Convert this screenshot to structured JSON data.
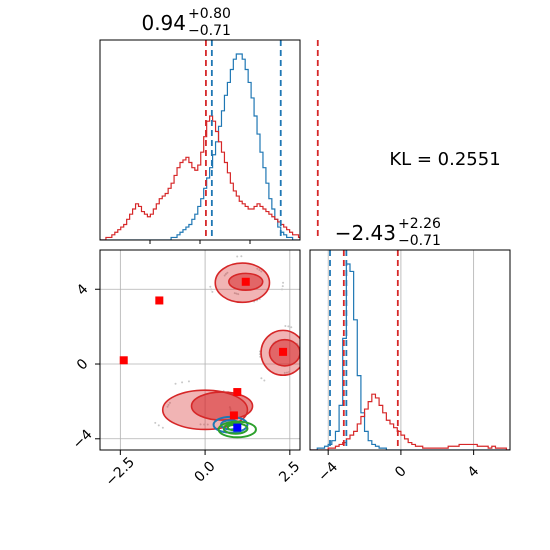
{
  "chart_data": [
    {
      "type": "histogram",
      "panel": "x-marginal",
      "title": {
        "value": "0.94",
        "plus": "+0.80",
        "minus": "−0.71"
      },
      "xlim": [
        -1.2,
        1.5
      ],
      "ticks": [],
      "series": [
        {
          "color": "#1f77b4",
          "bin_start": -1.2,
          "bin_width": 0.04,
          "values": [
            0,
            0,
            0,
            0,
            0,
            0,
            0,
            0,
            0,
            0,
            0,
            0,
            0,
            0,
            0,
            0,
            0,
            0,
            0,
            0,
            0,
            0,
            0,
            0,
            1,
            1,
            2,
            3,
            4,
            5,
            6,
            8,
            10,
            13,
            16,
            20,
            24,
            28,
            33,
            38,
            44,
            50,
            56,
            61,
            66,
            70,
            72,
            72,
            70,
            66,
            61,
            55,
            48,
            41,
            34,
            28,
            22,
            16,
            12,
            8,
            5,
            3,
            2,
            1,
            1,
            0,
            0,
            0,
            0,
            0
          ]
        },
        {
          "color": "#d62728",
          "bin_start": -1.2,
          "bin_width": 0.04,
          "values": [
            0,
            0,
            1,
            1,
            2,
            3,
            4,
            5,
            6,
            8,
            10,
            12,
            14,
            13,
            11,
            10,
            9,
            10,
            12,
            14,
            16,
            17,
            18,
            20,
            22,
            25,
            28,
            30,
            31,
            32,
            30,
            28,
            27,
            29,
            34,
            40,
            46,
            48,
            46,
            42,
            38,
            34,
            30,
            26,
            22,
            19,
            17,
            15,
            14,
            13,
            12,
            12,
            13,
            14,
            13,
            12,
            11,
            10,
            9,
            8,
            7,
            6,
            5,
            4,
            3,
            2,
            2,
            1,
            1,
            0
          ]
        }
      ],
      "quantile_lines": [
        {
          "color": "#d62728",
          "x": [
            0.23,
            1.74
          ]
        },
        {
          "color": "#1f77b4",
          "x": [
            0.31,
            1.24
          ]
        }
      ]
    },
    {
      "type": "histogram",
      "panel": "y-marginal",
      "title": {
        "value": "−2.43",
        "plus": "+2.26",
        "minus": "−0.71"
      },
      "xlim": [
        -5.0,
        6.0
      ],
      "ticks": [
        {
          "v": -4,
          "label": "−4"
        },
        {
          "v": 0,
          "label": "0"
        },
        {
          "v": 4,
          "label": "4"
        }
      ],
      "series": [
        {
          "color": "#1f77b4",
          "bin_start": -5.0,
          "bin_width": 0.2,
          "values": [
            0,
            0,
            1,
            1,
            2,
            3,
            5,
            10,
            24,
            60,
            100,
            96,
            70,
            40,
            20,
            10,
            5,
            3,
            2,
            1,
            1,
            0,
            0,
            0,
            0,
            0,
            0,
            0,
            0,
            0,
            0,
            0,
            0,
            0,
            0,
            0,
            0,
            0,
            0,
            0,
            0,
            0,
            0,
            0,
            0,
            0,
            0,
            0,
            0,
            0,
            0,
            0,
            0,
            0,
            0
          ]
        },
        {
          "color": "#d62728",
          "bin_start": -5.0,
          "bin_width": 0.2,
          "values": [
            0,
            0,
            0,
            0,
            0,
            1,
            1,
            2,
            3,
            4,
            6,
            8,
            10,
            14,
            18,
            22,
            26,
            30,
            28,
            24,
            20,
            16,
            14,
            12,
            10,
            8,
            6,
            4,
            3,
            2,
            2,
            1,
            1,
            1,
            1,
            1,
            1,
            1,
            2,
            2,
            2,
            3,
            3,
            3,
            3,
            3,
            2,
            2,
            2,
            1,
            2,
            1,
            1,
            1,
            0
          ]
        }
      ],
      "quantile_lines": [
        {
          "color": "#d62728",
          "x": [
            -3.14,
            -0.17
          ]
        },
        {
          "color": "#1f77b4",
          "x": [
            -3.9,
            -3.0
          ]
        }
      ]
    },
    {
      "type": "scatter",
      "panel": "joint",
      "xlim": [
        -3.1,
        2.8
      ],
      "ylim": [
        -4.6,
        6.1
      ],
      "x_ticks": [
        {
          "v": -2.5,
          "label": "−2.5"
        },
        {
          "v": 0.0,
          "label": "0.0"
        },
        {
          "v": 2.5,
          "label": "2.5"
        }
      ],
      "y_ticks": [
        {
          "v": 4,
          "label": "4"
        },
        {
          "v": 0,
          "label": "0"
        },
        {
          "v": -4,
          "label": "−4"
        }
      ],
      "red_contours": [
        {
          "cx": 0.0,
          "cy": -2.45,
          "rx": 1.25,
          "ry": 1.05,
          "level": 2,
          "light": true
        },
        {
          "cx": 0.5,
          "cy": -2.25,
          "rx": 0.9,
          "ry": 0.75,
          "level": 1,
          "light": false
        },
        {
          "cx": 1.1,
          "cy": 4.35,
          "rx": 0.8,
          "ry": 1.05,
          "level": 2,
          "light": true
        },
        {
          "cx": 1.2,
          "cy": 4.4,
          "rx": 0.5,
          "ry": 0.45,
          "level": 1,
          "light": false
        },
        {
          "cx": 2.3,
          "cy": 0.6,
          "rx": 0.65,
          "ry": 1.2,
          "level": 2,
          "light": true
        },
        {
          "cx": 2.35,
          "cy": 0.6,
          "rx": 0.45,
          "ry": 0.7,
          "level": 1,
          "light": false
        }
      ],
      "green_contours": [
        {
          "cx": 0.95,
          "cy": -3.5,
          "rx": 0.55,
          "ry": 0.42
        },
        {
          "cx": 0.9,
          "cy": -3.45,
          "rx": 0.35,
          "ry": 0.28
        },
        {
          "cx": 0.85,
          "cy": -3.4,
          "rx": 0.18,
          "ry": 0.14
        }
      ],
      "blue_contours": [
        {
          "cx": 0.75,
          "cy": -3.25,
          "rx": 0.5,
          "ry": 0.42
        },
        {
          "cx": 0.75,
          "cy": -3.25,
          "rx": 0.28,
          "ry": 0.25
        }
      ],
      "red_points": [
        {
          "x": -2.4,
          "y": 0.2
        },
        {
          "x": -1.35,
          "y": 3.4
        },
        {
          "x": 1.2,
          "y": 4.4
        },
        {
          "x": 2.3,
          "y": 0.65
        },
        {
          "x": 0.95,
          "y": -1.5
        },
        {
          "x": 0.85,
          "y": -2.75
        }
      ],
      "blue_point": {
        "x": 0.95,
        "y": -3.4
      }
    }
  ],
  "annotation": {
    "label": "KL = 0.2551"
  }
}
